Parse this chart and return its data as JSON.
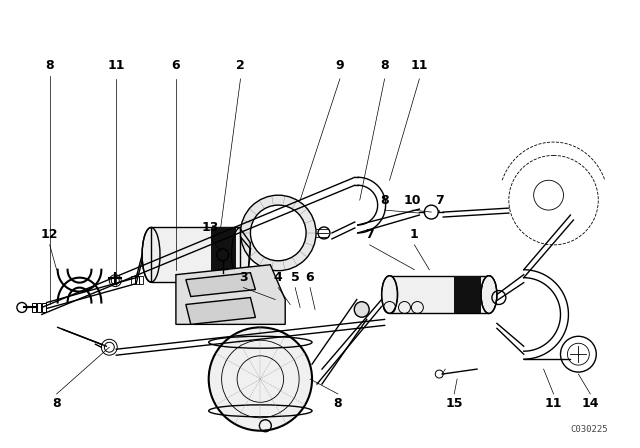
{
  "bg_color": "#ffffff",
  "fig_width": 6.4,
  "fig_height": 4.48,
  "dpi": 100,
  "diagram_code": "C030225",
  "lc": "#000000",
  "lw": 1.0,
  "tlw": 0.6
}
